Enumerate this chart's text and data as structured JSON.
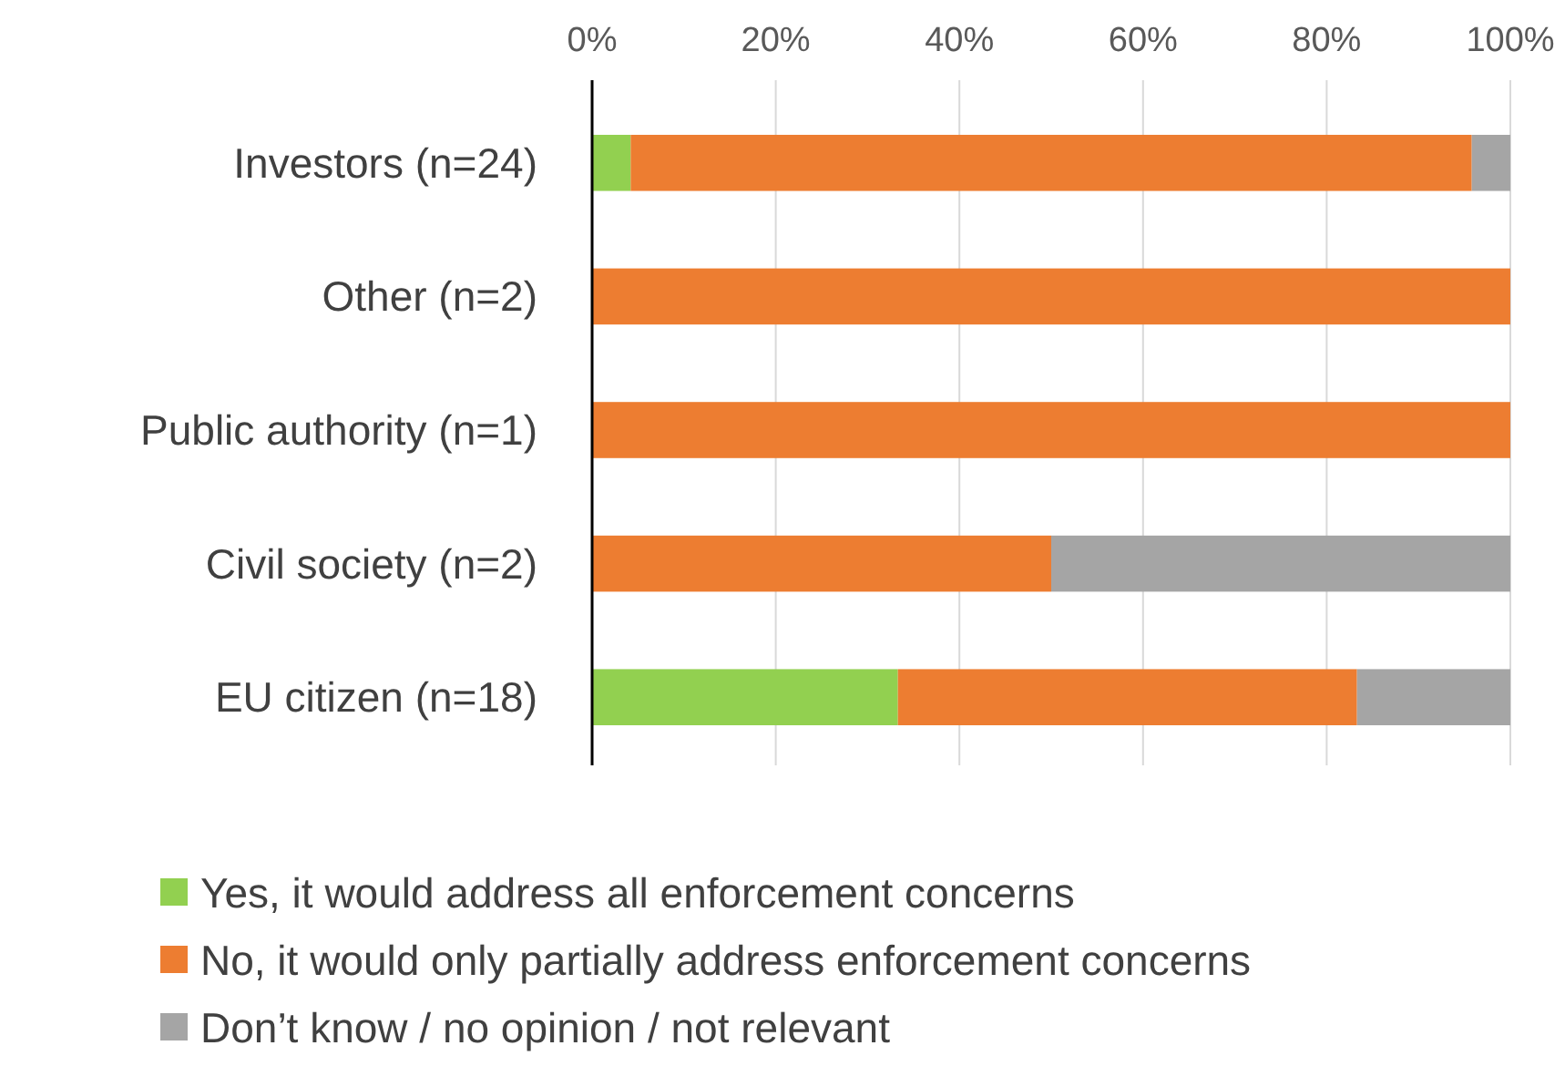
{
  "chart_data": {
    "type": "bar",
    "orientation": "horizontal",
    "stacked": true,
    "categories": [
      "Investors (n=24)",
      "Other (n=2)",
      "Public authority (n=1)",
      "Civil society (n=2)",
      "EU citizen (n=18)"
    ],
    "series": [
      {
        "name": "Yes, it would address all enforcement concerns",
        "color": "#92d050",
        "values": [
          4.2,
          0,
          0,
          0,
          33.3
        ]
      },
      {
        "name": "No, it would only partially address enforcement concerns",
        "color": "#ed7d31",
        "values": [
          91.6,
          100,
          100,
          50,
          50
        ]
      },
      {
        "name": "Don’t know / no opinion / not relevant",
        "color": "#a5a5a5",
        "values": [
          4.2,
          0,
          0,
          50,
          16.7
        ]
      }
    ],
    "xlim": [
      0,
      100
    ],
    "xticks": [
      {
        "value": 0,
        "label": "0%"
      },
      {
        "value": 20,
        "label": "20%"
      },
      {
        "value": 40,
        "label": "40%"
      },
      {
        "value": 60,
        "label": "60%"
      },
      {
        "value": 80,
        "label": "80%"
      },
      {
        "value": 100,
        "label": "100%"
      }
    ],
    "grid": "x",
    "legend": "bottom"
  }
}
